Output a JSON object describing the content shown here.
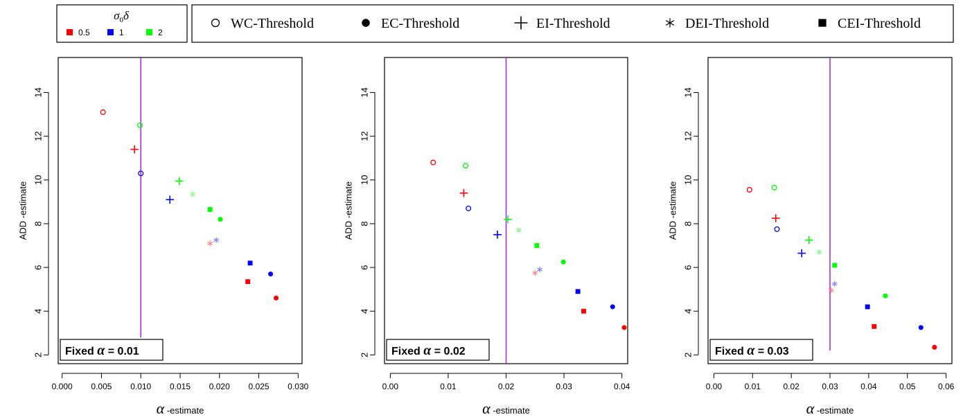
{
  "legend_sigma": {
    "title_symbol": "σ",
    "title_subscript": "0",
    "title_delta": "δ",
    "entries": [
      {
        "label": "0.5",
        "color": "#ff0000"
      },
      {
        "label": "1",
        "color": "#0000ff"
      },
      {
        "label": "2",
        "color": "#00ff00"
      }
    ]
  },
  "legend_methods": [
    {
      "label": "WC-Threshold",
      "marker": "open-circle"
    },
    {
      "label": "EC-Threshold",
      "marker": "filled-circle"
    },
    {
      "label": "EI-Threshold",
      "marker": "plus"
    },
    {
      "label": "DEI-Threshold",
      "marker": "asterisk"
    },
    {
      "label": "CEI-Threshold",
      "marker": "filled-square"
    }
  ],
  "chart_data": [
    {
      "type": "scatter",
      "annotation_prefix": "Fixed ",
      "annotation_symbol": "α",
      "annotation_value": " = 0.01",
      "xlabel_symbol": "α",
      "xlabel_text": " -estimate",
      "ylabel": "ADD -estimate",
      "xlim": [
        -0.0005,
        0.0305
      ],
      "ylim": [
        1.6,
        15.6
      ],
      "xticks": [
        0.0,
        0.005,
        0.01,
        0.015,
        0.02,
        0.025,
        0.03
      ],
      "xtick_labels": [
        "0.000",
        "0.005",
        "0.010",
        "0.015",
        "0.020",
        "0.025",
        "0.030"
      ],
      "yticks": [
        2,
        4,
        6,
        8,
        10,
        12,
        14
      ],
      "ytick_labels": [
        "2",
        "4",
        "6",
        "8",
        "10",
        "12",
        "14"
      ],
      "vline": {
        "x": 0.01,
        "color": "#a020f0",
        "y_from": 2.8
      },
      "points": [
        {
          "x": 0.0052,
          "y": 13.1,
          "marker": "open-circle",
          "color": "#ff0000"
        },
        {
          "x": 0.01,
          "y": 10.3,
          "marker": "open-circle",
          "color": "#0000ff"
        },
        {
          "x": 0.0099,
          "y": 12.5,
          "marker": "open-circle",
          "color": "#00ff00"
        },
        {
          "x": 0.0272,
          "y": 4.6,
          "marker": "filled-circle",
          "color": "#ff0000"
        },
        {
          "x": 0.0265,
          "y": 5.7,
          "marker": "filled-circle",
          "color": "#0000ff"
        },
        {
          "x": 0.0201,
          "y": 8.2,
          "marker": "filled-circle",
          "color": "#00ff00"
        },
        {
          "x": 0.0092,
          "y": 11.4,
          "marker": "plus",
          "color": "#ff0000"
        },
        {
          "x": 0.0137,
          "y": 9.1,
          "marker": "plus",
          "color": "#0000ff"
        },
        {
          "x": 0.0149,
          "y": 9.95,
          "marker": "plus",
          "color": "#00ff00"
        },
        {
          "x": 0.0188,
          "y": 7.1,
          "marker": "asterisk",
          "color": "#ff8080"
        },
        {
          "x": 0.0196,
          "y": 7.25,
          "marker": "asterisk",
          "color": "#8080ff"
        },
        {
          "x": 0.0166,
          "y": 9.35,
          "marker": "asterisk",
          "color": "#80ff80"
        },
        {
          "x": 0.0236,
          "y": 5.35,
          "marker": "filled-square",
          "color": "#ff0000"
        },
        {
          "x": 0.0239,
          "y": 6.2,
          "marker": "filled-square",
          "color": "#0000ff"
        },
        {
          "x": 0.0188,
          "y": 8.65,
          "marker": "filled-square",
          "color": "#00ff00"
        }
      ]
    },
    {
      "type": "scatter",
      "annotation_prefix": "Fixed ",
      "annotation_symbol": "α",
      "annotation_value": " = 0.02",
      "xlabel_symbol": "α",
      "xlabel_text": " -estimate",
      "ylabel": "ADD -estimate",
      "xlim": [
        -0.001,
        0.041
      ],
      "ylim": [
        1.6,
        15.6
      ],
      "xticks": [
        0.0,
        0.01,
        0.02,
        0.03,
        0.04
      ],
      "xtick_labels": [
        "0.00",
        "0.01",
        "0.02",
        "0.03",
        "0.04"
      ],
      "yticks": [
        2,
        4,
        6,
        8,
        10,
        12,
        14
      ],
      "ytick_labels": [
        "2",
        "4",
        "6",
        "8",
        "10",
        "12",
        "14"
      ],
      "vline": {
        "x": 0.02,
        "color": "#a020f0",
        "y_from": 1.6
      },
      "points": [
        {
          "x": 0.0074,
          "y": 10.8,
          "marker": "open-circle",
          "color": "#ff0000"
        },
        {
          "x": 0.0135,
          "y": 8.7,
          "marker": "open-circle",
          "color": "#0000ff"
        },
        {
          "x": 0.013,
          "y": 10.65,
          "marker": "open-circle",
          "color": "#00ff00"
        },
        {
          "x": 0.0404,
          "y": 3.25,
          "marker": "filled-circle",
          "color": "#ff0000"
        },
        {
          "x": 0.0384,
          "y": 4.2,
          "marker": "filled-circle",
          "color": "#0000ff"
        },
        {
          "x": 0.0299,
          "y": 6.25,
          "marker": "filled-circle",
          "color": "#00ff00"
        },
        {
          "x": 0.0127,
          "y": 9.4,
          "marker": "plus",
          "color": "#ff0000"
        },
        {
          "x": 0.0185,
          "y": 7.5,
          "marker": "plus",
          "color": "#0000ff"
        },
        {
          "x": 0.0203,
          "y": 8.2,
          "marker": "plus",
          "color": "#00ff00"
        },
        {
          "x": 0.025,
          "y": 5.75,
          "marker": "asterisk",
          "color": "#ff8080"
        },
        {
          "x": 0.0258,
          "y": 5.9,
          "marker": "asterisk",
          "color": "#8080ff"
        },
        {
          "x": 0.0222,
          "y": 7.7,
          "marker": "asterisk",
          "color": "#80ff80"
        },
        {
          "x": 0.0334,
          "y": 4.0,
          "marker": "filled-square",
          "color": "#ff0000"
        },
        {
          "x": 0.0324,
          "y": 4.9,
          "marker": "filled-square",
          "color": "#0000ff"
        },
        {
          "x": 0.0253,
          "y": 7.0,
          "marker": "filled-square",
          "color": "#00ff00"
        }
      ]
    },
    {
      "type": "scatter",
      "annotation_prefix": "Fixed ",
      "annotation_symbol": "α",
      "annotation_value": " = 0.03",
      "xlabel_symbol": "α",
      "xlabel_text": " -estimate",
      "ylabel": "ADD -estimate",
      "xlim": [
        -0.0015,
        0.0615
      ],
      "ylim": [
        1.6,
        15.6
      ],
      "xticks": [
        0.0,
        0.01,
        0.02,
        0.03,
        0.04,
        0.05,
        0.06
      ],
      "xtick_labels": [
        "0.00",
        "0.01",
        "0.02",
        "0.03",
        "0.04",
        "0.05",
        "0.06"
      ],
      "yticks": [
        2,
        4,
        6,
        8,
        10,
        12,
        14
      ],
      "ytick_labels": [
        "2",
        "4",
        "6",
        "8",
        "10",
        "12",
        "14"
      ],
      "vline": {
        "x": 0.03,
        "color": "#a020f0",
        "y_from": 2.2
      },
      "points": [
        {
          "x": 0.0092,
          "y": 9.55,
          "marker": "open-circle",
          "color": "#ff0000"
        },
        {
          "x": 0.0163,
          "y": 7.75,
          "marker": "open-circle",
          "color": "#0000ff"
        },
        {
          "x": 0.0156,
          "y": 9.65,
          "marker": "open-circle",
          "color": "#00ff00"
        },
        {
          "x": 0.057,
          "y": 2.35,
          "marker": "filled-circle",
          "color": "#ff0000"
        },
        {
          "x": 0.0535,
          "y": 3.25,
          "marker": "filled-circle",
          "color": "#0000ff"
        },
        {
          "x": 0.0443,
          "y": 4.7,
          "marker": "filled-circle",
          "color": "#00ff00"
        },
        {
          "x": 0.016,
          "y": 8.25,
          "marker": "plus",
          "color": "#ff0000"
        },
        {
          "x": 0.0227,
          "y": 6.65,
          "marker": "plus",
          "color": "#0000ff"
        },
        {
          "x": 0.0246,
          "y": 7.25,
          "marker": "plus",
          "color": "#00ff00"
        },
        {
          "x": 0.0303,
          "y": 4.95,
          "marker": "asterisk",
          "color": "#ff8080"
        },
        {
          "x": 0.0312,
          "y": 5.25,
          "marker": "asterisk",
          "color": "#8080ff"
        },
        {
          "x": 0.0272,
          "y": 6.7,
          "marker": "asterisk",
          "color": "#80ff80"
        },
        {
          "x": 0.0414,
          "y": 3.3,
          "marker": "filled-square",
          "color": "#ff0000"
        },
        {
          "x": 0.0397,
          "y": 4.2,
          "marker": "filled-square",
          "color": "#0000ff"
        },
        {
          "x": 0.0312,
          "y": 6.1,
          "marker": "filled-square",
          "color": "#00ff00"
        }
      ]
    }
  ]
}
